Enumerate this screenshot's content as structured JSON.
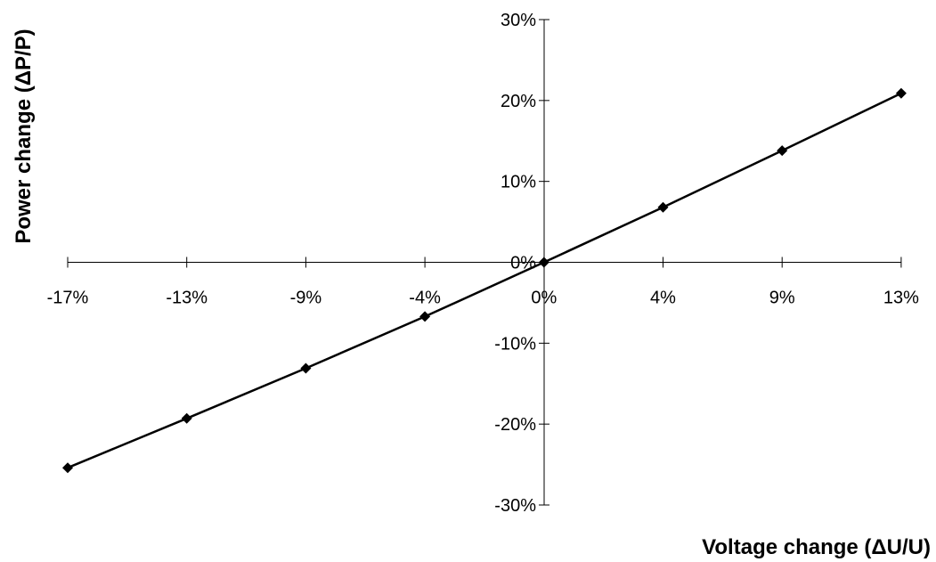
{
  "chart_data": {
    "type": "line",
    "title": "",
    "xlabel": "Voltage change (ΔU/U)",
    "ylabel": "Power change (ΔP/P)",
    "x_tick_labels": [
      "-17%",
      "-13%",
      "-9%",
      "-4%",
      "0%",
      "4%",
      "9%",
      "13%"
    ],
    "y_tick_labels": [
      "30%",
      "20%",
      "10%",
      "0%",
      "-10%",
      "-20%",
      "-30%"
    ],
    "y_tick_values": [
      30,
      20,
      10,
      0,
      -10,
      -20,
      -30
    ],
    "ylim": [
      -30,
      30
    ],
    "grid": false,
    "legend": "none",
    "series": [
      {
        "marker": "diamond",
        "color": "#000000",
        "x": [
          "-17%",
          "-13%",
          "-9%",
          "-4%",
          "0%",
          "4%",
          "9%",
          "13%"
        ],
        "values": [
          -25.4,
          -19.3,
          -13.1,
          -6.7,
          0,
          6.8,
          13.8,
          20.9
        ]
      }
    ]
  }
}
